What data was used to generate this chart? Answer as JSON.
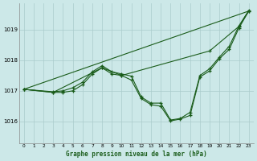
{
  "title": "Graphe pression niveau de la mer (hPa)",
  "background_color": "#cce8e8",
  "grid_color": "#aacccc",
  "line_color": "#1a5c1a",
  "xlim": [
    -0.5,
    23.5
  ],
  "ylim": [
    1015.3,
    1019.85
  ],
  "yticks": [
    1016,
    1017,
    1018,
    1019
  ],
  "xticks": [
    0,
    1,
    2,
    3,
    4,
    5,
    6,
    7,
    8,
    9,
    10,
    11,
    12,
    13,
    14,
    15,
    16,
    17,
    18,
    19,
    20,
    21,
    22,
    23
  ],
  "series": [
    {
      "x": [
        0,
        3,
        8,
        10,
        19,
        22,
        23
      ],
      "y": [
        1017.05,
        1016.95,
        1017.75,
        1017.5,
        1018.3,
        1019.1,
        1019.6
      ]
    },
    {
      "x": [
        0,
        23
      ],
      "y": [
        1017.05,
        1019.6
      ]
    },
    {
      "x": [
        0,
        3,
        4,
        5,
        6,
        7,
        8,
        9,
        10,
        11,
        12,
        13,
        14,
        15,
        16,
        17,
        18,
        19,
        20,
        21,
        22,
        23
      ],
      "y": [
        1017.05,
        1016.95,
        1016.95,
        1017.0,
        1017.2,
        1017.55,
        1017.75,
        1017.55,
        1017.5,
        1017.35,
        1016.75,
        1016.55,
        1016.5,
        1016.02,
        1016.08,
        1016.2,
        1017.45,
        1017.65,
        1018.05,
        1018.35,
        1019.05,
        1019.6
      ]
    },
    {
      "x": [
        0,
        3,
        4,
        5,
        6,
        7,
        8,
        9,
        10,
        11,
        12,
        13,
        14,
        15,
        16,
        17,
        18,
        19,
        20,
        21,
        22,
        23
      ],
      "y": [
        1017.05,
        1016.97,
        1017.0,
        1017.1,
        1017.28,
        1017.62,
        1017.82,
        1017.62,
        1017.55,
        1017.48,
        1016.8,
        1016.6,
        1016.6,
        1016.05,
        1016.1,
        1016.3,
        1017.5,
        1017.72,
        1018.1,
        1018.45,
        1019.12,
        1019.62
      ]
    }
  ]
}
